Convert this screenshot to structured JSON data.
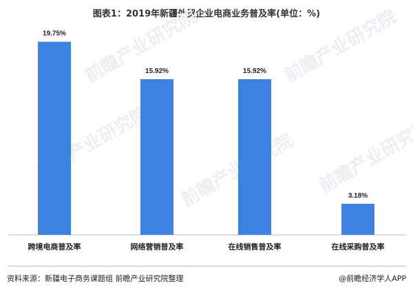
{
  "title": "图表1：2019年新疆外贸企业电商业务普及率(单位：%)",
  "chart_data": {
    "type": "bar",
    "categories": [
      "跨境电商普及率",
      "网络营销普及率",
      "在线销售普及率",
      "在线采购普及率"
    ],
    "values": [
      19.75,
      15.92,
      15.92,
      3.18
    ],
    "value_labels": [
      "19.75%",
      "15.92%",
      "15.92%",
      "3.18%"
    ],
    "title": "图表1：2019年新疆外贸企业电商业务普及率(单位：%)",
    "unit": "%",
    "ylim": [
      0,
      20.5
    ],
    "grid": false,
    "bar_color": "#3d82e0"
  },
  "footer": {
    "source": "资料来源：新疆电子商务课题组 前瞻产业研究院整理",
    "brand": "@前瞻经济学人APP"
  },
  "watermark": "前瞻产业研究院"
}
